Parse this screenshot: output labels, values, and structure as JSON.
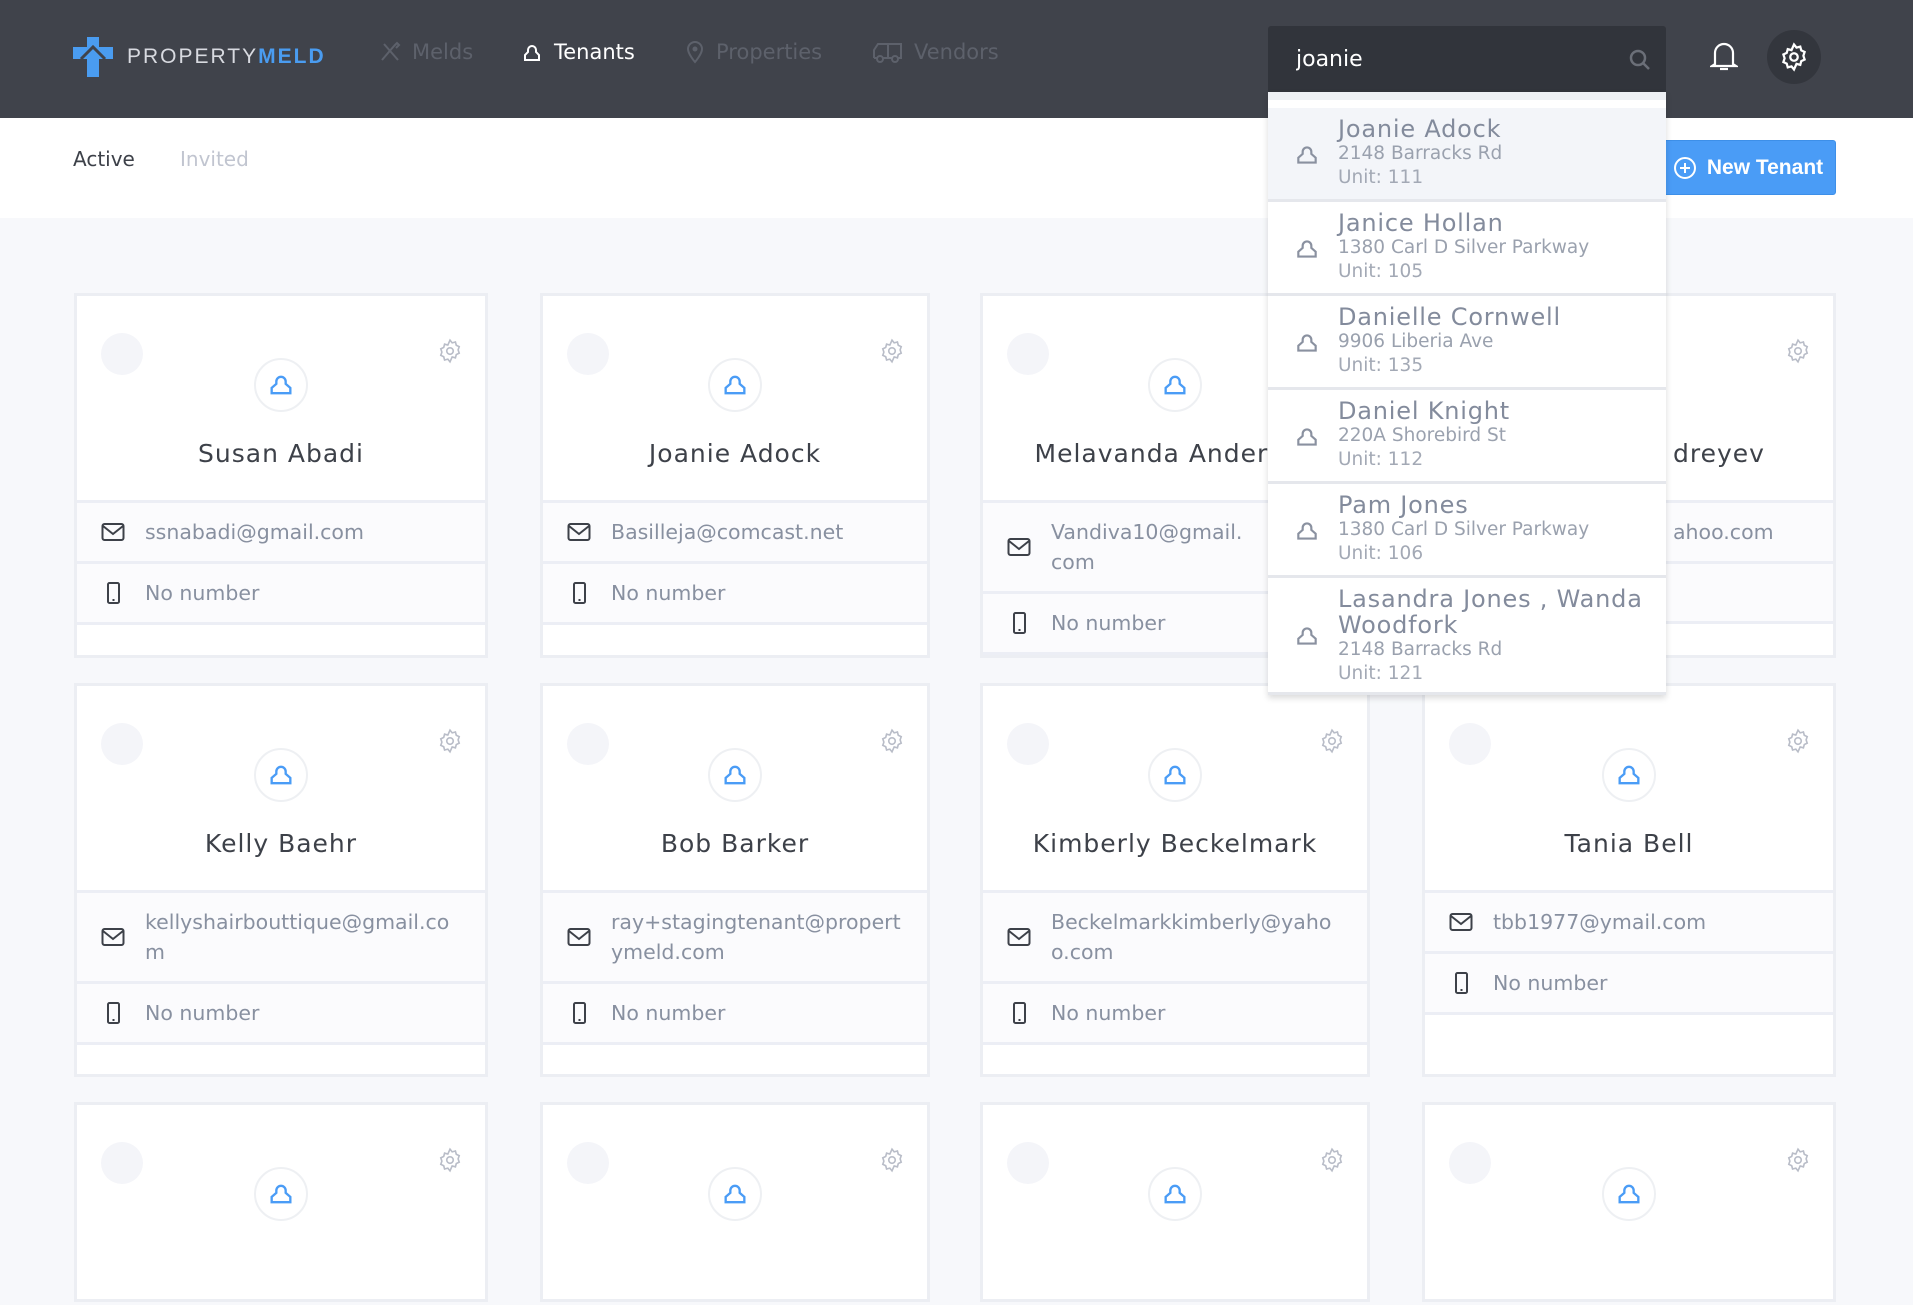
{
  "app": {
    "logo_part1": "PROPERTY",
    "logo_part2": "MELD",
    "brand_color": "#4a9cf0"
  },
  "nav": [
    {
      "label": "Melds",
      "icon": "tools-icon"
    },
    {
      "label": "Tenants",
      "icon": "user-icon",
      "active": true
    },
    {
      "label": "Properties",
      "icon": "map-pin-icon"
    },
    {
      "label": "Vendors",
      "icon": "truck-icon"
    }
  ],
  "search": {
    "value": "joanie"
  },
  "tabs": [
    {
      "label": "Active",
      "active": true
    },
    {
      "label": "Invited"
    }
  ],
  "new_tenant_label": "New Tenant",
  "dropdown": [
    {
      "name": "Joanie Adock",
      "address": "2148 Barracks Rd",
      "unit": "Unit: 111"
    },
    {
      "name": "Janice Hollan",
      "address": "1380 Carl D Silver Parkway",
      "unit": "Unit: 105"
    },
    {
      "name": "Danielle Cornwell",
      "address": "9906 Liberia Ave",
      "unit": "Unit: 135"
    },
    {
      "name": "Daniel Knight",
      "address": "220A Shorebird St",
      "unit": "Unit: 112"
    },
    {
      "name": "Pam Jones",
      "address": "1380 Carl D Silver Parkway",
      "unit": "Unit: 106"
    },
    {
      "name": "Lasandra Jones , Wanda Woodfork",
      "address": "2148 Barracks Rd",
      "unit": "Unit: 121"
    }
  ],
  "tenants": [
    {
      "name": "Susan Abadi",
      "email": "ssnabadi@gmail.com",
      "phone": "No number"
    },
    {
      "name": "Joanie Adock",
      "email": "Basilleja@comcast.net",
      "phone": "No number"
    },
    {
      "name": "Melavanda Anderson",
      "email": "Vandiva10@gmail.com",
      "phone": "No number"
    },
    {
      "name": "dreyev",
      "email": "ahoo.com",
      "phone": ""
    },
    {
      "name": "Kelly Baehr",
      "email": "kellyshairbouttique@gmail.com",
      "phone": "No number"
    },
    {
      "name": "Bob Barker",
      "email": "ray+stagingtenant@propertymeld.com",
      "phone": "No number"
    },
    {
      "name": "Kimberly Beckelmark",
      "email": "Beckelmarkkimberly@yahoo.com",
      "phone": "No number"
    },
    {
      "name": "Tania Bell",
      "email": "tbb1977@ymail.com",
      "phone": "No number"
    },
    {
      "name": "",
      "email": "",
      "phone": ""
    },
    {
      "name": "",
      "email": "",
      "phone": ""
    },
    {
      "name": "",
      "email": "",
      "phone": ""
    },
    {
      "name": "",
      "email": "",
      "phone": ""
    }
  ]
}
